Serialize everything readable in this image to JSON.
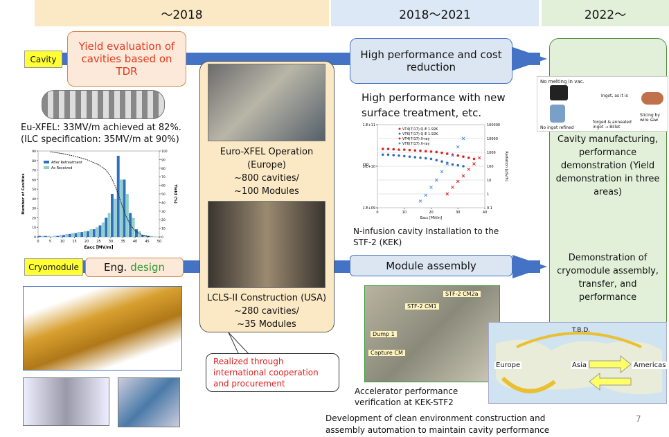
{
  "header": {
    "columns": [
      "～2018",
      "2018～2021",
      "2022～"
    ]
  },
  "labels": {
    "cavity": "Cavity",
    "cryomodule": "Cryomodule"
  },
  "boxes": {
    "yield": "Yield evaluation of cavities based on TDR",
    "eng": "Eng.",
    "eng_accent": "design",
    "high_perf": "High performance and cost reduction",
    "module": "Module assembly",
    "realized": "Realized through international cooperation and procurement"
  },
  "left": {
    "xfel_result": "Eu-XFEL: 33MV/m achieved at 82%.",
    "ilc_spec": "(ILC specification: 35MV/m at 90%)"
  },
  "center": {
    "euro": [
      "Euro-XFEL Operation",
      "(Europe)",
      "~800 cavities/",
      "~100 Modules"
    ],
    "lcls": [
      "LCLS-II Construction (USA)",
      "~280 cavities/",
      "~35 Modules"
    ]
  },
  "middle": {
    "surface": "High performance with new surface treatment, etc.",
    "ninfusion": "N-infusion cavity Installation to the STF-2 (KEK)",
    "photo_labels": [
      "STF-2 CM2a",
      "STF-2 CM1",
      "Dump 1",
      "Capture CM"
    ],
    "verification": "Accelerator performance verification at KEK-STF2",
    "development": "Development of clean environment construction and assembly automation to maintain cavity performance"
  },
  "right": {
    "cavity_demo": "Cavity manufacturing, performance demonstration (Yield demonstration in three areas)",
    "cryo_demo": "Demonstration of cryomodule assembly, transfer, and performance",
    "process_labels": [
      "No melting in vac.",
      "Ingot, as it is",
      "No ingot refined",
      "forged & annealed ingot → Billet",
      "Slicing by wire saw"
    ]
  },
  "map": {
    "labels": [
      "T.B.D.",
      "Europe",
      "Asia",
      "Americas"
    ]
  },
  "page_number": "7",
  "histogram": {
    "type": "histogram",
    "xlabel": "Eacc [MV/m]",
    "ylabel": "Number of Cavities",
    "y2label": "Yield (%)",
    "bins": [
      0,
      2.5,
      5,
      7.5,
      10,
      12.5,
      15,
      17.5,
      20,
      22.5,
      25,
      27.5,
      30,
      32.5,
      35,
      37.5,
      40,
      42.5,
      45,
      47.5,
      50
    ],
    "series": [
      {
        "name": "After Retreatment",
        "color": "#2e6fc2",
        "values": [
          1,
          1,
          0,
          1,
          2,
          3,
          4,
          5,
          6,
          8,
          12,
          20,
          45,
          85,
          60,
          25,
          8,
          2,
          1,
          0
        ]
      },
      {
        "name": "As Received",
        "color": "#8fd0c8",
        "values": [
          1,
          1,
          1,
          2,
          3,
          4,
          5,
          6,
          8,
          10,
          15,
          25,
          40,
          60,
          45,
          20,
          6,
          2,
          1,
          0
        ]
      }
    ],
    "yield_curve": {
      "color": "#222222",
      "axis": "y2",
      "x": [
        5,
        10,
        15,
        20,
        25,
        28,
        30,
        32,
        34,
        36,
        38,
        40,
        43,
        46
      ],
      "values": [
        99,
        97,
        94,
        90,
        84,
        78,
        70,
        58,
        42,
        26,
        14,
        7,
        2,
        0
      ]
    },
    "xlim": [
      0,
      50
    ],
    "xticks": [
      0,
      5,
      10,
      15,
      20,
      25,
      30,
      35,
      40,
      45,
      50
    ],
    "ylim": [
      0,
      90
    ],
    "yticks": [
      0,
      10,
      20,
      30,
      40,
      50,
      60,
      70,
      80,
      90
    ],
    "y2lim": [
      0,
      100
    ],
    "y2ticks": [
      0,
      10,
      20,
      30,
      40,
      50,
      60,
      70,
      80,
      90,
      100
    ]
  },
  "scatter": {
    "type": "scatter",
    "xlabel": "Eacc [MV/m]",
    "ylabel": "Q0",
    "y2label": "Radiation [uSv/h]",
    "log_y": true,
    "xlim": [
      0,
      40
    ],
    "xticks": [
      0,
      10,
      20,
      30,
      40
    ],
    "ylim": [
      1000000000.0,
      100000000000.0
    ],
    "yticks": [
      {
        "value": 1000000000.0,
        "label": "1.E+09"
      },
      {
        "value": 10000000000.0,
        "label": "1.E+10"
      },
      {
        "value": 100000000000.0,
        "label": "1.E+11"
      }
    ],
    "y2lim": [
      0.1,
      100000
    ],
    "y2ticks": [
      0.1,
      1,
      10,
      100,
      1000,
      10000,
      100000
    ],
    "grid": true,
    "series": [
      {
        "name": "VT4(7/17) Q-E 1.92K",
        "color": "#e02020",
        "marker": "dot",
        "x": [
          2,
          4,
          6,
          8,
          10,
          12,
          14,
          16,
          18,
          20,
          22,
          24,
          26,
          28,
          30,
          32,
          34,
          36
        ],
        "values": [
          26000000000.0,
          26000000000.0,
          25500000000.0,
          25000000000.0,
          25000000000.0,
          24500000000.0,
          24000000000.0,
          23500000000.0,
          23000000000.0,
          22500000000.0,
          22000000000.0,
          21000000000.0,
          20000000000.0,
          19000000000.0,
          18000000000.0,
          17000000000.0,
          16000000000.0,
          15000000000.0
        ]
      },
      {
        "name": "VT6(7/17) Q-E 1.92K",
        "color": "#2e6fc2",
        "marker": "dot",
        "x": [
          2,
          4,
          6,
          8,
          10,
          12,
          14,
          16,
          18,
          20,
          22,
          24,
          26,
          28,
          30,
          32
        ],
        "values": [
          19000000000.0,
          19000000000.0,
          18500000000.0,
          18000000000.0,
          17500000000.0,
          17000000000.0,
          16500000000.0,
          16000000000.0,
          15500000000.0,
          15000000000.0,
          14000000000.0,
          13000000000.0,
          12000000000.0,
          11000000000.0,
          10500000000.0,
          10000000000.0
        ]
      },
      {
        "name": "VT4(7/17) X-ray",
        "color": "#e02020",
        "marker": "cross",
        "axis": "y2",
        "x": [
          26,
          28,
          30,
          32,
          34,
          36,
          38
        ],
        "values": [
          1,
          3,
          8,
          20,
          60,
          150,
          400
        ]
      },
      {
        "name": "VT6(7/17) X-ray",
        "color": "#4a90d9",
        "marker": "cross",
        "axis": "y2",
        "x": [
          16,
          18,
          20,
          22,
          24,
          26,
          28,
          30,
          32
        ],
        "values": [
          0.3,
          0.8,
          3,
          10,
          40,
          150,
          600,
          2500,
          10000
        ]
      }
    ]
  }
}
